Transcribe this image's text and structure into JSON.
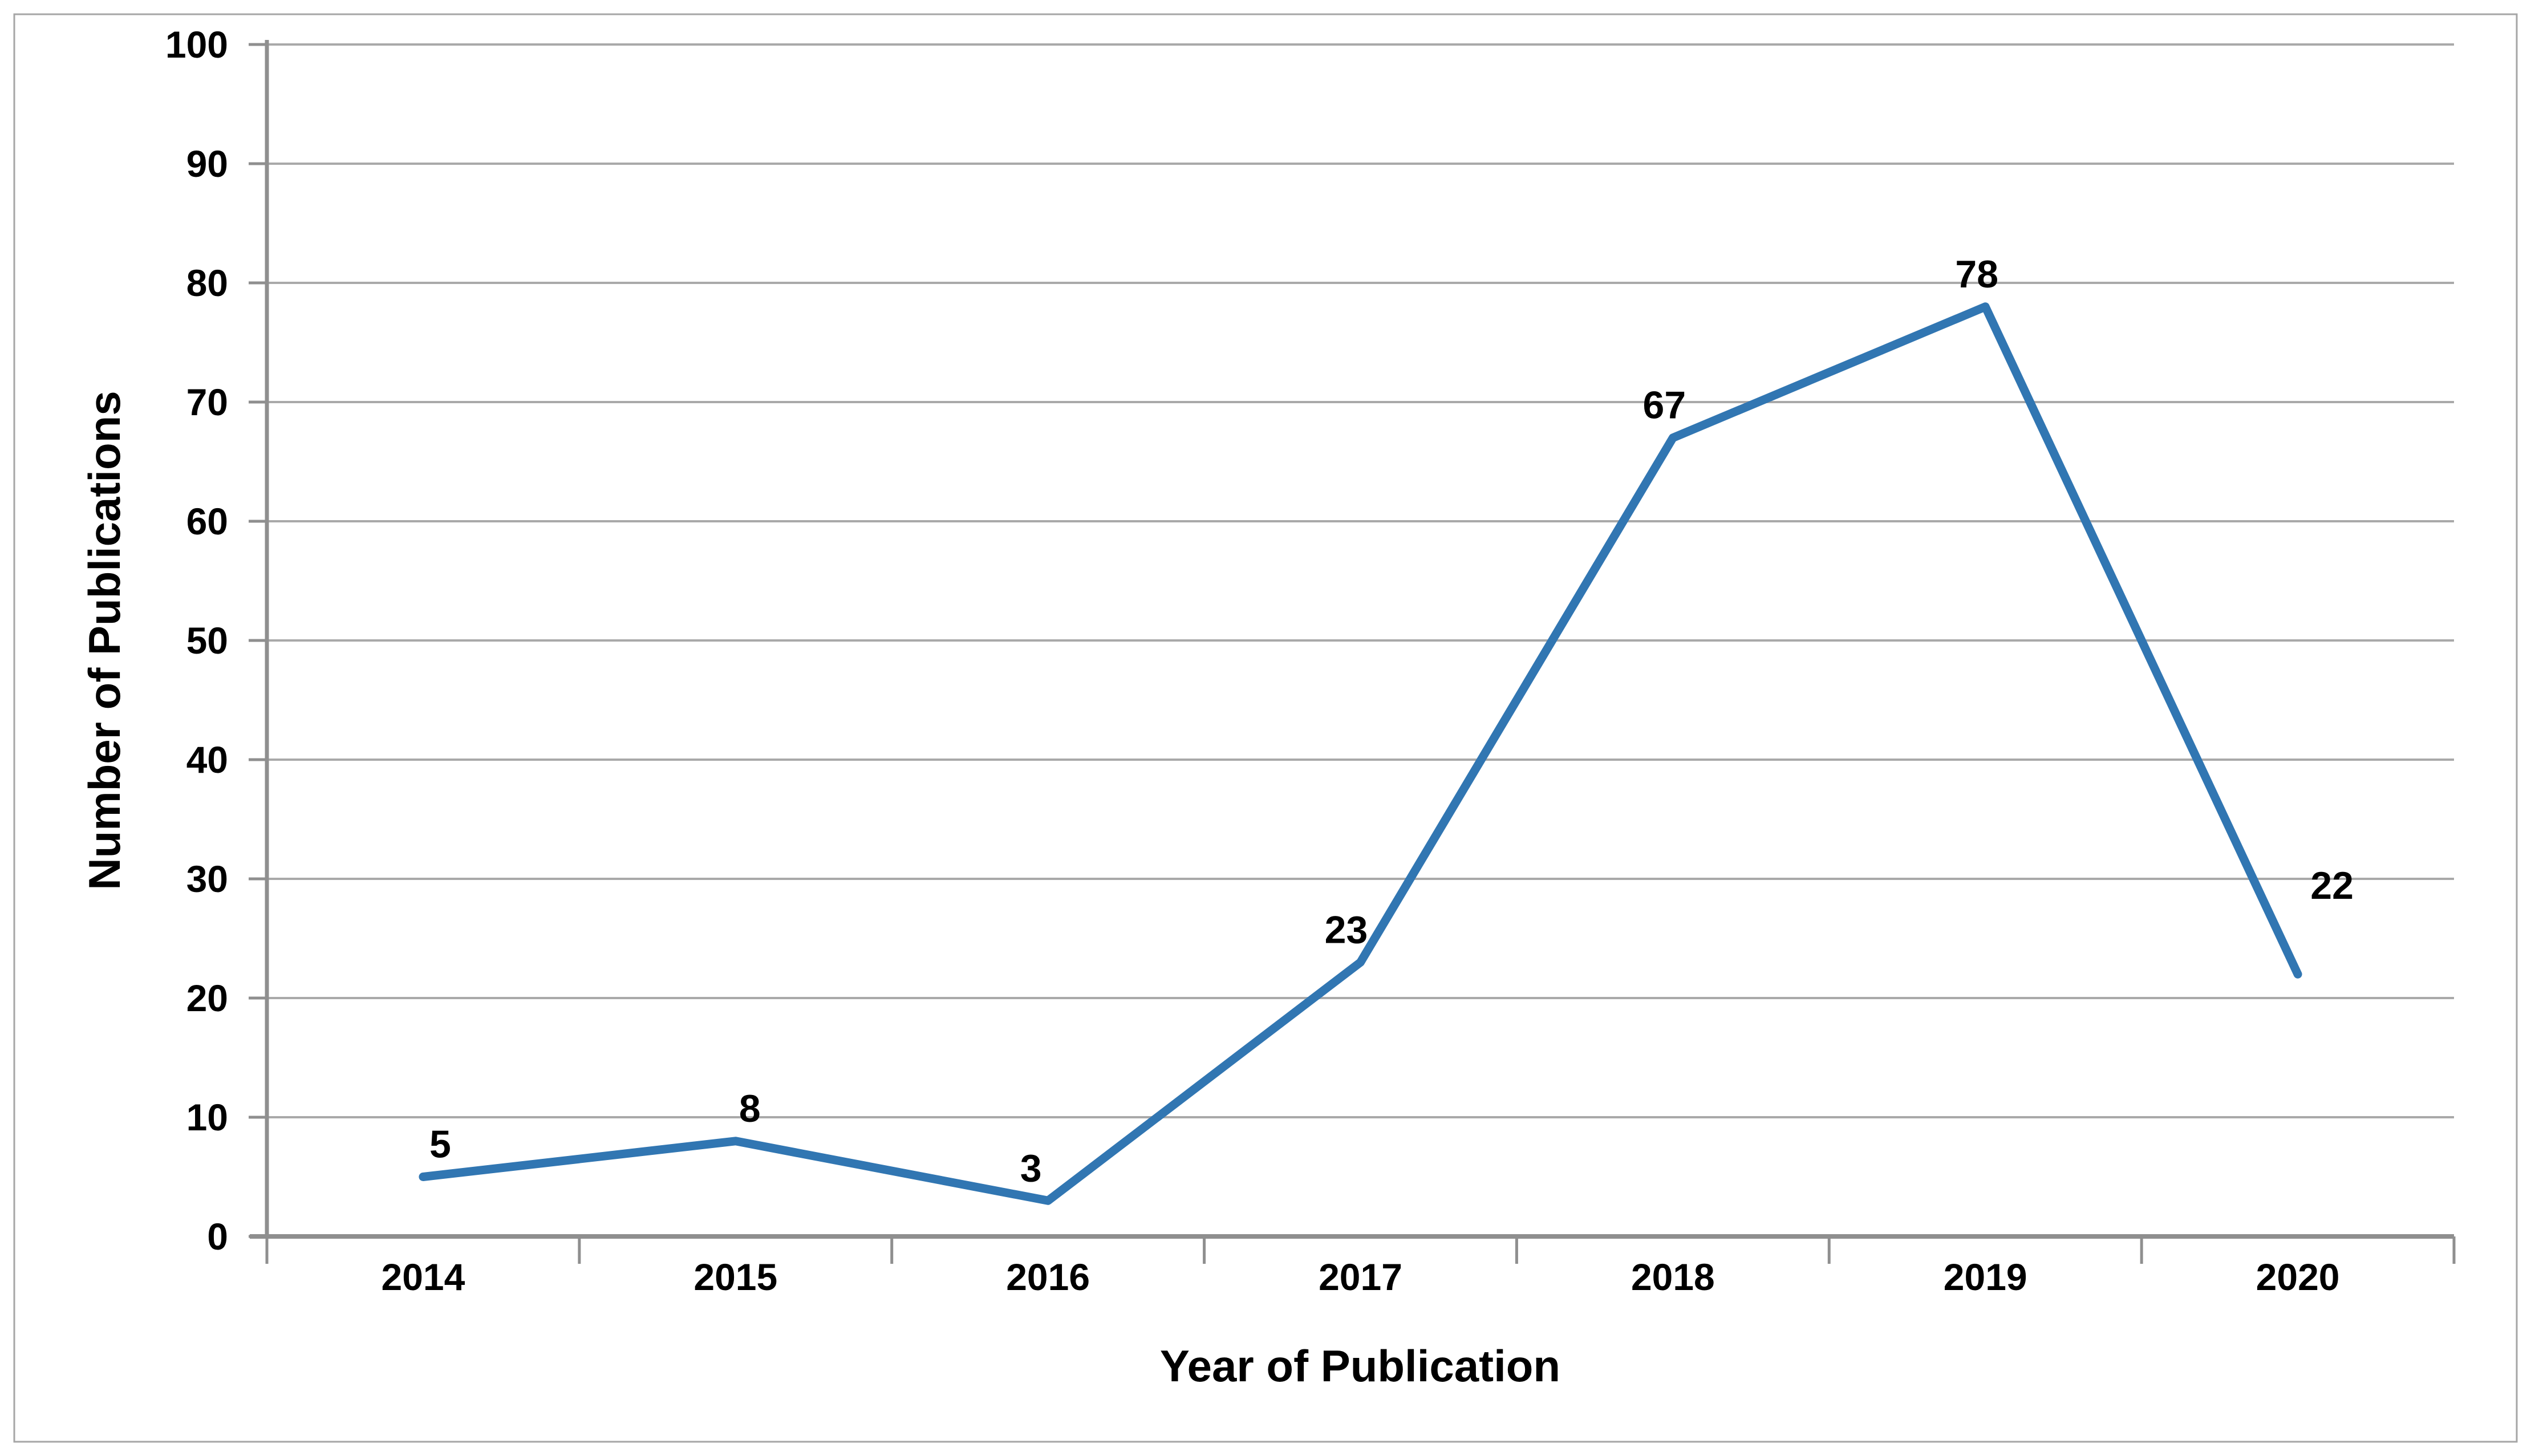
{
  "chart_data": {
    "type": "line",
    "title": "",
    "categories": [
      "2014",
      "2015",
      "2016",
      "2017",
      "2018",
      "2019",
      "2020"
    ],
    "series": [
      {
        "name": "Number of Publications",
        "values": [
          5,
          8,
          3,
          23,
          67,
          78,
          22
        ]
      }
    ],
    "data_labels": [
      "5",
      "8",
      "3",
      "23",
      "67",
      "78",
      "22"
    ],
    "xlabel": "Year of Publication",
    "ylabel": "Number of Publications",
    "ylim": [
      0,
      100
    ],
    "ytick_step": 10,
    "yticks": [
      0,
      10,
      20,
      30,
      40,
      50,
      60,
      70,
      80,
      90,
      100
    ],
    "grid": "horizontal-only",
    "legend": "none",
    "colors": {
      "line": "#3176B2",
      "gridline": "#A9A9A9",
      "axis": "#8F8F8F",
      "border": "#A6A6A6",
      "text": "#000000",
      "background": "#FFFFFF"
    }
  }
}
